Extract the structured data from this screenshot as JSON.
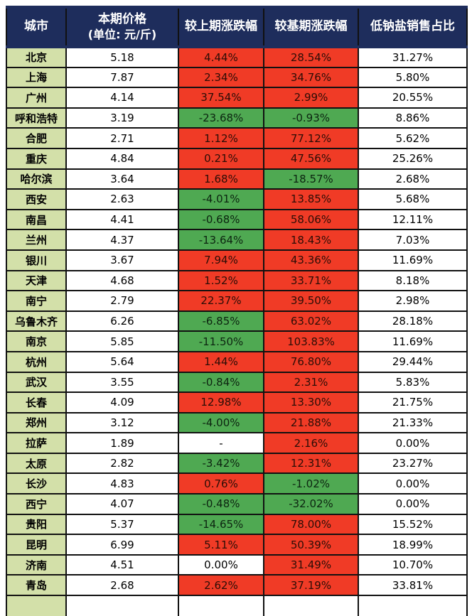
{
  "colors": {
    "header_bg": "#1e2d5c",
    "city_bg": "#d3e0a9",
    "up_bg": "#f03b26",
    "down_bg": "#4fa952"
  },
  "table": {
    "columns": [
      {
        "id": "city",
        "label": "城市",
        "sub": ""
      },
      {
        "id": "price",
        "label": "本期价格",
        "sub": "(单位: 元/斤)"
      },
      {
        "id": "chg_prev",
        "label": "较上期涨跌幅",
        "sub": ""
      },
      {
        "id": "chg_base",
        "label": "较基期涨跌幅",
        "sub": ""
      },
      {
        "id": "share",
        "label": "低钠盐销售占比",
        "sub": ""
      }
    ],
    "rows": [
      {
        "city": "北京",
        "price": "5.18",
        "chg_prev": {
          "text": "4.44%",
          "state": "up"
        },
        "chg_base": {
          "text": "28.54%",
          "state": "up"
        },
        "share": "31.27%"
      },
      {
        "city": "上海",
        "price": "7.87",
        "chg_prev": {
          "text": "2.34%",
          "state": "up"
        },
        "chg_base": {
          "text": "34.76%",
          "state": "up"
        },
        "share": "5.80%"
      },
      {
        "city": "广州",
        "price": "4.14",
        "chg_prev": {
          "text": "37.54%",
          "state": "up"
        },
        "chg_base": {
          "text": "2.99%",
          "state": "up"
        },
        "share": "20.55%"
      },
      {
        "city": "呼和浩特",
        "price": "3.19",
        "chg_prev": {
          "text": "-23.68%",
          "state": "down"
        },
        "chg_base": {
          "text": "-0.93%",
          "state": "down"
        },
        "share": "8.86%"
      },
      {
        "city": "合肥",
        "price": "2.71",
        "chg_prev": {
          "text": "1.12%",
          "state": "up"
        },
        "chg_base": {
          "text": "77.12%",
          "state": "up"
        },
        "share": "5.62%"
      },
      {
        "city": "重庆",
        "price": "4.84",
        "chg_prev": {
          "text": "0.21%",
          "state": "up"
        },
        "chg_base": {
          "text": "47.56%",
          "state": "up"
        },
        "share": "25.26%"
      },
      {
        "city": "哈尔滨",
        "price": "3.64",
        "chg_prev": {
          "text": "1.68%",
          "state": "up"
        },
        "chg_base": {
          "text": "-18.57%",
          "state": "down"
        },
        "share": "2.68%"
      },
      {
        "city": "西安",
        "price": "2.63",
        "chg_prev": {
          "text": "-4.01%",
          "state": "down"
        },
        "chg_base": {
          "text": "13.85%",
          "state": "up"
        },
        "share": "5.68%"
      },
      {
        "city": "南昌",
        "price": "4.41",
        "chg_prev": {
          "text": "-0.68%",
          "state": "down"
        },
        "chg_base": {
          "text": "58.06%",
          "state": "up"
        },
        "share": "12.11%"
      },
      {
        "city": "兰州",
        "price": "4.37",
        "chg_prev": {
          "text": "-13.64%",
          "state": "down"
        },
        "chg_base": {
          "text": "18.43%",
          "state": "up"
        },
        "share": "7.03%"
      },
      {
        "city": "银川",
        "price": "3.67",
        "chg_prev": {
          "text": "7.94%",
          "state": "up"
        },
        "chg_base": {
          "text": "43.36%",
          "state": "up"
        },
        "share": "11.69%"
      },
      {
        "city": "天津",
        "price": "4.68",
        "chg_prev": {
          "text": "1.52%",
          "state": "up"
        },
        "chg_base": {
          "text": "33.71%",
          "state": "up"
        },
        "share": "8.18%"
      },
      {
        "city": "南宁",
        "price": "2.79",
        "chg_prev": {
          "text": "22.37%",
          "state": "up"
        },
        "chg_base": {
          "text": "39.50%",
          "state": "up"
        },
        "share": "2.98%"
      },
      {
        "city": "乌鲁木齐",
        "price": "6.26",
        "chg_prev": {
          "text": "-6.85%",
          "state": "down"
        },
        "chg_base": {
          "text": "63.02%",
          "state": "up"
        },
        "share": "28.18%"
      },
      {
        "city": "南京",
        "price": "5.85",
        "chg_prev": {
          "text": "-11.50%",
          "state": "down"
        },
        "chg_base": {
          "text": "103.83%",
          "state": "up"
        },
        "share": "11.69%"
      },
      {
        "city": "杭州",
        "price": "5.64",
        "chg_prev": {
          "text": "1.44%",
          "state": "up"
        },
        "chg_base": {
          "text": "76.80%",
          "state": "up"
        },
        "share": "29.44%"
      },
      {
        "city": "武汉",
        "price": "3.55",
        "chg_prev": {
          "text": "-0.84%",
          "state": "down"
        },
        "chg_base": {
          "text": "2.31%",
          "state": "up"
        },
        "share": "5.83%"
      },
      {
        "city": "长春",
        "price": "4.09",
        "chg_prev": {
          "text": "12.98%",
          "state": "up"
        },
        "chg_base": {
          "text": "13.30%",
          "state": "up"
        },
        "share": "21.75%"
      },
      {
        "city": "郑州",
        "price": "3.12",
        "chg_prev": {
          "text": "-4.00%",
          "state": "down"
        },
        "chg_base": {
          "text": "21.88%",
          "state": "up"
        },
        "share": "21.33%"
      },
      {
        "city": "拉萨",
        "price": "1.89",
        "chg_prev": {
          "text": "-",
          "state": "flat"
        },
        "chg_base": {
          "text": "2.16%",
          "state": "up"
        },
        "share": "0.00%"
      },
      {
        "city": "太原",
        "price": "2.82",
        "chg_prev": {
          "text": "-3.42%",
          "state": "down"
        },
        "chg_base": {
          "text": "12.31%",
          "state": "up"
        },
        "share": "23.27%"
      },
      {
        "city": "长沙",
        "price": "4.83",
        "chg_prev": {
          "text": "0.76%",
          "state": "up"
        },
        "chg_base": {
          "text": "-1.02%",
          "state": "down"
        },
        "share": "0.00%"
      },
      {
        "city": "西宁",
        "price": "4.07",
        "chg_prev": {
          "text": "-0.48%",
          "state": "down"
        },
        "chg_base": {
          "text": "-32.02%",
          "state": "down"
        },
        "share": "0.00%"
      },
      {
        "city": "贵阳",
        "price": "5.37",
        "chg_prev": {
          "text": "-14.65%",
          "state": "down"
        },
        "chg_base": {
          "text": "78.00%",
          "state": "up"
        },
        "share": "15.52%"
      },
      {
        "city": "昆明",
        "price": "6.99",
        "chg_prev": {
          "text": "5.11%",
          "state": "up"
        },
        "chg_base": {
          "text": "50.39%",
          "state": "up"
        },
        "share": "18.99%"
      },
      {
        "city": "济南",
        "price": "4.51",
        "chg_prev": {
          "text": "0.00%",
          "state": "flat"
        },
        "chg_base": {
          "text": "31.49%",
          "state": "up"
        },
        "share": "10.70%"
      },
      {
        "city": "青岛",
        "price": "2.68",
        "chg_prev": {
          "text": "2.62%",
          "state": "up"
        },
        "chg_base": {
          "text": "37.19%",
          "state": "up"
        },
        "share": "33.81%"
      }
    ]
  }
}
